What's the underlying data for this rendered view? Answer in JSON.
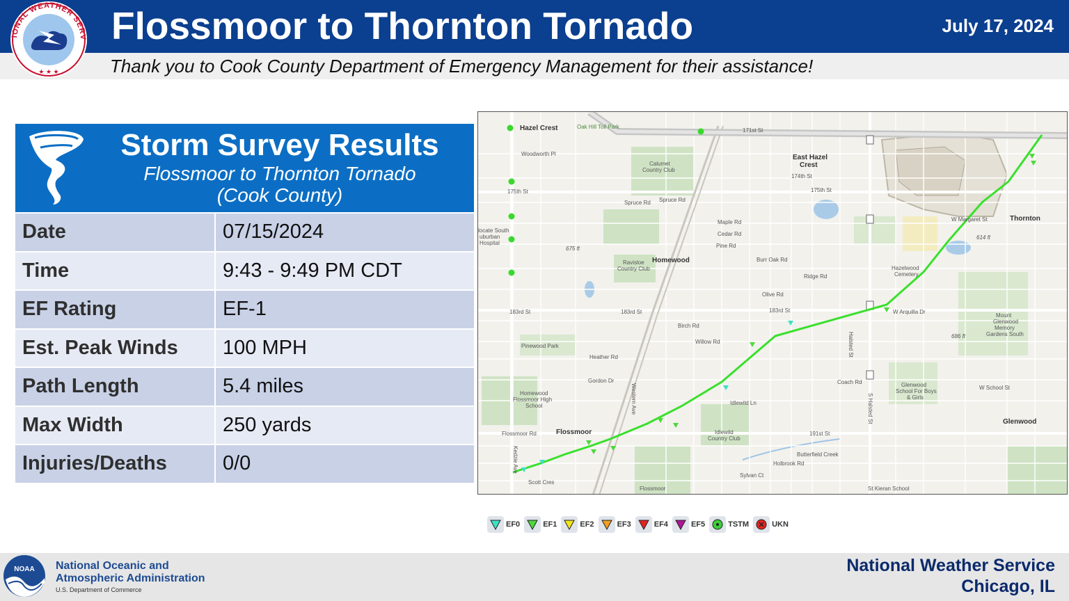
{
  "header": {
    "title": "Flossmoor to Thornton Tornado",
    "date": "July 17, 2024",
    "subtitle": "Thank you to Cook County Department of Emergency Management for their assistance!",
    "logo_text": "NATIONAL WEATHER SERVICE"
  },
  "survey": {
    "title": "Storm Survey Results",
    "subtitle_line1": "Flossmoor to Thornton Tornado",
    "subtitle_line2": "(Cook County)",
    "rows": [
      {
        "label": "Date",
        "value": "07/15/2024"
      },
      {
        "label": "Time",
        "value": "9:43 - 9:49 PM CDT"
      },
      {
        "label": "EF Rating",
        "value": "EF-1"
      },
      {
        "label": "Est. Peak Winds",
        "value": "100 MPH"
      },
      {
        "label": "Path Length",
        "value": "5.4 miles"
      },
      {
        "label": "Max Width",
        "value": "250 yards"
      },
      {
        "label": "Injuries/Deaths",
        "value": "0/0"
      }
    ]
  },
  "map": {
    "places": {
      "hazel_crest": "Hazel Crest",
      "east_hazel_crest_1": "East Hazel",
      "east_hazel_crest_2": "Crest",
      "homewood": "Homewood",
      "flossmoor": "Flossmoor",
      "thornton": "Thornton",
      "glenwood": "Glenwood"
    },
    "roads": {
      "r171": "171st St",
      "r175": "175th St",
      "r183": "183rd St",
      "spruce": "Spruce Rd",
      "maple": "Maple Rd",
      "ridge": "Ridge Rd",
      "olive": "Olive Rd",
      "birch": "Birch Rd",
      "willow": "Willow Rd",
      "heather": "Heather Rd",
      "gordon": "Gordon Dr",
      "idlewild": "Idlewild Ln",
      "flossmoor_rd": "Flossmoor Rd",
      "halsted": "Halsted St",
      "s_halsted": "S Halsted St",
      "western": "Western Ave",
      "kedzie": "Kedzie Ave",
      "w_margaret": "W Margaret St",
      "w_arquilla": "W Arquilla Dr",
      "w_school": "W School St",
      "coach": "Coach Rd",
      "holbrook": "Holbrook Rd",
      "sylvan": "Sylvan Ct",
      "butterfield": "Butterfield Creek",
      "r191": "191st St",
      "scott": "Scott Cres",
      "woodworth": "Woodworth Pl",
      "r174": "174th St",
      "r175b": "175th St",
      "burr_oak": "Burr Oak Rd",
      "pine": "Pine Rd",
      "cedar": "Cedar Rd"
    },
    "landmarks": {
      "oak_hill": "Oak Hill Toll Park",
      "calumet_1": "Calumet",
      "calumet_2": "Country Club",
      "ravisloe_1": "Ravisloe",
      "ravisloe_2": "Country Club",
      "pinewood": "Pinewood Park",
      "hfhs_1": "Homewood",
      "hfhs_2": "Flossmoor High",
      "hfhs_3": "School",
      "idlewild_cc_1": "Idlewild",
      "idlewild_cc_2": "Country Club",
      "hazelwood_1": "Hazelwood",
      "hazelwood_2": "Cemetery",
      "glenwood_school_1": "Glenwood",
      "glenwood_school_2": "School For Boys",
      "glenwood_school_3": "& Girls",
      "mount_glenwood_1": "Mount",
      "mount_glenwood_2": "Glenwood",
      "mount_glenwood_3": "Memory",
      "mount_glenwood_4": "Gardens South",
      "st_kieran": "St Kieran School",
      "hospital_1": "locate South",
      "hospital_2": "uburban",
      "hospital_3": "Hospital",
      "elev_675": "675 ft",
      "elev_614": "614 ft",
      "elev_686": "686 ft",
      "flossmoor_cc": "Flossmoor"
    }
  },
  "legend": [
    {
      "label": "EF0",
      "shape": "triangle",
      "color": "#3fe0c5"
    },
    {
      "label": "EF1",
      "shape": "triangle",
      "color": "#4cd93a"
    },
    {
      "label": "EF2",
      "shape": "triangle",
      "color": "#f2e41c"
    },
    {
      "label": "EF3",
      "shape": "triangle",
      "color": "#f0a020"
    },
    {
      "label": "EF4",
      "shape": "triangle",
      "color": "#e3241f"
    },
    {
      "label": "EF5",
      "shape": "triangle",
      "color": "#b0159a"
    },
    {
      "label": "TSTM",
      "shape": "circle",
      "color": "#3ccf3a"
    },
    {
      "label": "UKN",
      "shape": "circle-x",
      "color": "#e3241f"
    }
  ],
  "footer": {
    "noaa_name1": "National Oceanic and",
    "noaa_name2": "Atmospheric Administration",
    "noaa_dept": "U.S. Department of Commerce",
    "noaa_logo_text": "NOAA",
    "office1": "National Weather Service",
    "office2": "Chicago, IL"
  },
  "colors": {
    "header_blue": "#0b3f8f",
    "panel_blue": "#0b6ec4",
    "track_green": "#39e02c",
    "row_dark": "#c8d1e6",
    "row_light": "#e6eaf4"
  }
}
